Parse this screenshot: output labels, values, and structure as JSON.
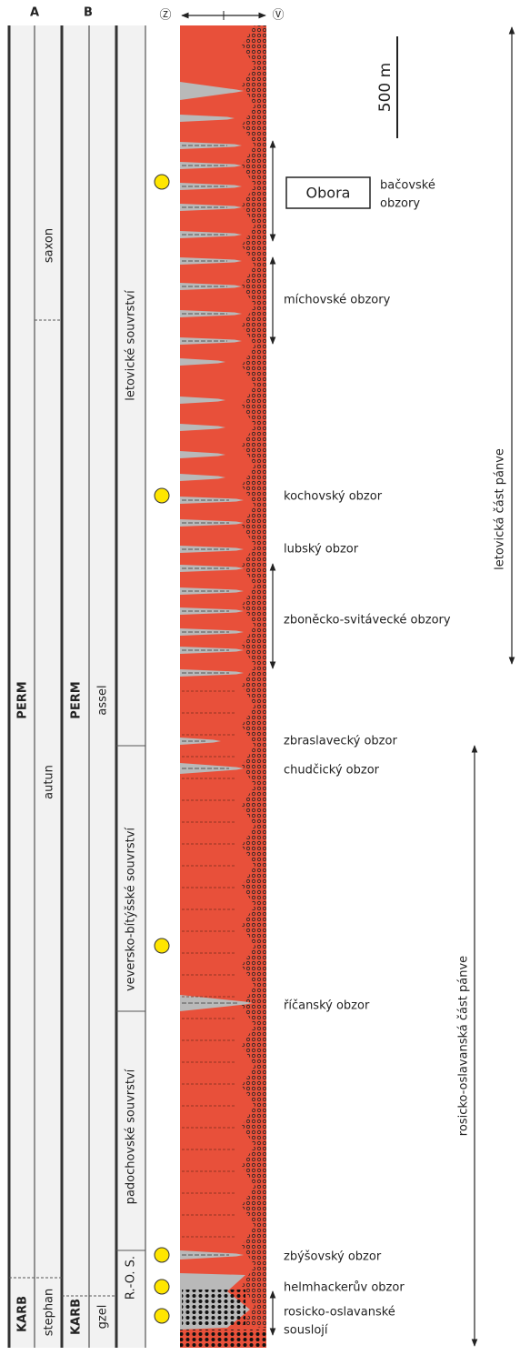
{
  "header": {
    "col_a": "A",
    "col_b": "B",
    "west": "Ⓩ",
    "east": "Ⓥ"
  },
  "column_a": {
    "systems": [
      "PERM",
      "KARB"
    ],
    "stages": [
      "saxon",
      "autun",
      "stephan"
    ]
  },
  "column_b": {
    "systems": [
      "PERM",
      "KARB"
    ],
    "stages": [
      "assel",
      "gzel"
    ]
  },
  "formations": [
    "letovické souvrství",
    "veversko-bítýšské souvrství",
    "padochovské souvrství",
    "R.-O. S."
  ],
  "scale": "500 m",
  "obora": "Obora",
  "horizons": [
    {
      "lines": [
        "bačovské",
        "obzory"
      ]
    },
    {
      "lines": [
        "míchovské obzory"
      ]
    },
    {
      "lines": [
        "kochovský obzor"
      ]
    },
    {
      "lines": [
        "lubský obzor"
      ]
    },
    {
      "lines": [
        "zboněcko-svitávecké obzory"
      ]
    },
    {
      "lines": [
        "zbraslavecký obzor"
      ]
    },
    {
      "lines": [
        "chudčický obzor"
      ]
    },
    {
      "lines": [
        "říčanský obzor"
      ]
    },
    {
      "lines": [
        "zbýšovský obzor"
      ]
    },
    {
      "lines": [
        "helmhackerův obzor"
      ]
    },
    {
      "lines": [
        "rosicko-oslavanské",
        "souslojí"
      ]
    }
  ],
  "regions": [
    "letovická část pánve",
    "rosicko-oslavanská část pánve"
  ]
}
